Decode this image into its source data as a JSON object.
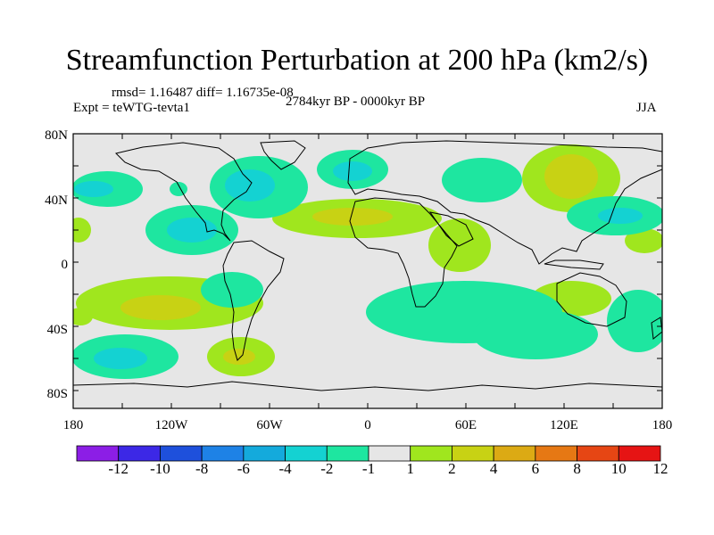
{
  "title": "Streamfunction Perturbation at 200 hPa (km2/s)",
  "rmsd_line": "rmsd= 1.16487 diff= 1.16735e-08",
  "period": "2784kyr BP - 0000kyr BP",
  "experiment": "Expt = teWTG-tevta1",
  "season": "JJA",
  "lat_ticks": [
    "80N",
    "40N",
    "0",
    "40S",
    "80S"
  ],
  "lon_ticks": [
    "180",
    "120W",
    "60W",
    "0",
    "60E",
    "120E",
    "180"
  ],
  "colorbar": {
    "labels": [
      "-12",
      "-10",
      "-8",
      "-6",
      "-4",
      "-2",
      "-1",
      "1",
      "2",
      "4",
      "6",
      "8",
      "10",
      "12"
    ],
    "colors": [
      "#8c1ee6",
      "#3c28e6",
      "#1e50dc",
      "#1e82e6",
      "#14aadc",
      "#14d2d2",
      "#1ee6a0",
      "#e6e6e6",
      "#a0e61e",
      "#c8d214",
      "#dcaa14",
      "#e67814",
      "#e64614",
      "#e61414"
    ]
  },
  "map_colors": {
    "neutral": "#e6e6e6",
    "neg1": "#1ee6a0",
    "neg2": "#14d2d2",
    "pos1": "#a0e61e",
    "pos2": "#c8d214"
  }
}
